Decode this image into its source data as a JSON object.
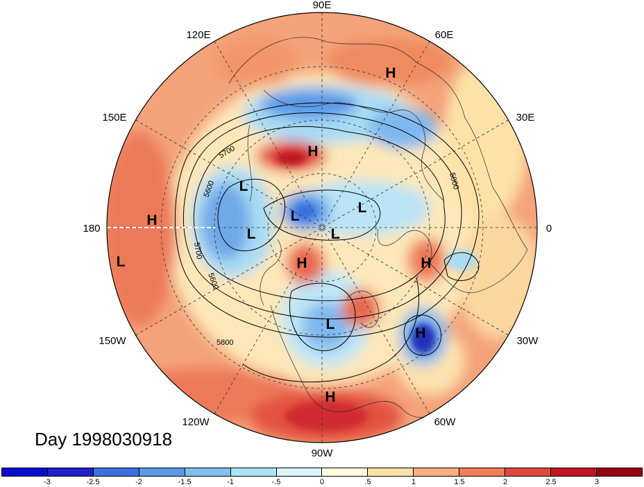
{
  "title": "Day 1998030918",
  "longitude_labels": [
    {
      "text": "90E"
    },
    {
      "text": "60E"
    },
    {
      "text": "30E"
    },
    {
      "text": "0"
    },
    {
      "text": "30W"
    },
    {
      "text": "60W"
    },
    {
      "text": "90W"
    },
    {
      "text": "120W"
    },
    {
      "text": "150W"
    },
    {
      "text": "180"
    },
    {
      "text": "150E"
    },
    {
      "text": "120E"
    }
  ],
  "pressure_centers": [
    "H",
    "H",
    "L",
    "L",
    "H",
    "L",
    "L",
    "L",
    "H",
    "L",
    "H",
    "L",
    "H",
    "H"
  ],
  "contour_labels": [
    "5700",
    "5600",
    "5700",
    "5600",
    "5800",
    "5800"
  ],
  "colorbar": {
    "colors": [
      "#2020c8",
      "#3a6fe0",
      "#5a9ae8",
      "#7fc0f0",
      "#a8e4f8",
      "#dcf4fc",
      "#fffce0",
      "#fde2a8",
      "#f9b07e",
      "#f07e5a",
      "#e04840",
      "#c01820",
      "#960010"
    ],
    "ticks": [
      "-3",
      "-2.5",
      "-2",
      "-1.5",
      "-1",
      "-.5",
      "0",
      ".5",
      "1",
      "1.5",
      "2",
      "2.5",
      "3"
    ]
  }
}
